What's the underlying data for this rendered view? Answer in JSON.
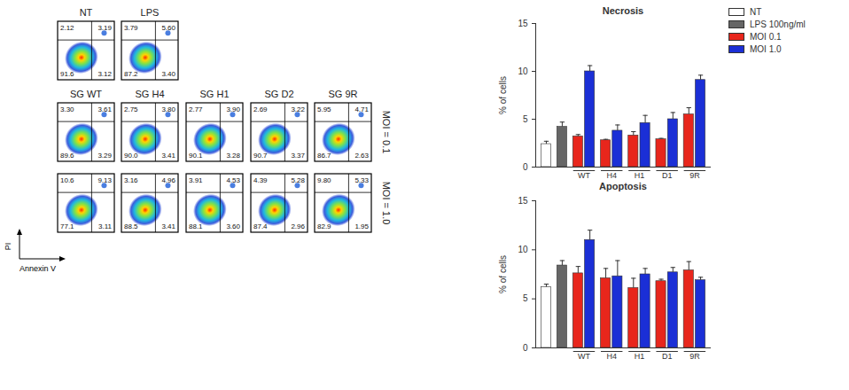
{
  "chart_data": [
    {
      "type": "flow_cytometry",
      "x_label": "Annexin V",
      "y_label": "PI",
      "panels": [
        {
          "title": "NT",
          "quadrants": {
            "values": [
              2.12,
              3.19,
              91.6,
              3.12
            ],
            "value_labels": [
              "2.12",
              "3.19",
              "91.6",
              "3.12"
            ]
          }
        },
        {
          "title": "LPS",
          "quadrants": {
            "values": [
              3.79,
              5.6,
              87.2,
              3.4
            ],
            "value_labels": [
              "3.79",
              "5.60",
              "87.2",
              "3.40"
            ]
          }
        }
      ],
      "rows": [
        {
          "label": "MOI = 0.1",
          "panels": [
            {
              "title": "SG WT",
              "quadrants": {
                "values": [
                  3.3,
                  3.61,
                  89.6,
                  3.29
                ],
                "value_labels": [
                  "3.30",
                  "3.61",
                  "89.6",
                  "3.29"
                ]
              }
            },
            {
              "title": "SG H4",
              "quadrants": {
                "values": [
                  2.75,
                  3.8,
                  90.0,
                  3.41
                ],
                "value_labels": [
                  "2.75",
                  "3.80",
                  "90.0",
                  "3.41"
                ]
              }
            },
            {
              "title": "SG H1",
              "quadrants": {
                "values": [
                  2.77,
                  3.9,
                  90.1,
                  3.28
                ],
                "value_labels": [
                  "2.77",
                  "3.90",
                  "90.1",
                  "3.28"
                ]
              }
            },
            {
              "title": "SG D2",
              "quadrants": {
                "values": [
                  2.69,
                  3.22,
                  90.7,
                  3.37
                ],
                "value_labels": [
                  "2.69",
                  "3.22",
                  "90.7",
                  "3.37"
                ]
              }
            },
            {
              "title": "SG 9R",
              "quadrants": {
                "values": [
                  5.95,
                  4.71,
                  86.7,
                  2.63
                ],
                "value_labels": [
                  "5.95",
                  "4.71",
                  "86.7",
                  "2.63"
                ]
              }
            }
          ]
        },
        {
          "label": "MOI = 1.0",
          "panels": [
            {
              "title": "SG WT",
              "quadrants": {
                "values": [
                  10.6,
                  9.13,
                  77.1,
                  3.11
                ],
                "value_labels": [
                  "10.6",
                  "9.13",
                  "77.1",
                  "3.11"
                ]
              }
            },
            {
              "title": "SG H4",
              "quadrants": {
                "values": [
                  3.16,
                  4.96,
                  88.5,
                  3.41
                ],
                "value_labels": [
                  "3.16",
                  "4.96",
                  "88.5",
                  "3.41"
                ]
              }
            },
            {
              "title": "SG H1",
              "quadrants": {
                "values": [
                  3.91,
                  4.53,
                  88.1,
                  3.6
                ],
                "value_labels": [
                  "3.91",
                  "4.53",
                  "88.1",
                  "3.60"
                ]
              }
            },
            {
              "title": "SG D2",
              "quadrants": {
                "values": [
                  4.39,
                  5.28,
                  87.4,
                  2.96
                ],
                "value_labels": [
                  "4.39",
                  "5.28",
                  "87.4",
                  "2.96"
                ]
              }
            },
            {
              "title": "SG 9R",
              "quadrants": {
                "values": [
                  9.8,
                  5.33,
                  82.9,
                  1.95
                ],
                "value_labels": [
                  "9.80",
                  "5.33",
                  "82.9",
                  "1.95"
                ]
              }
            }
          ]
        }
      ]
    },
    {
      "type": "bar",
      "title": "Necrosis",
      "y_label": "% of cells",
      "categories": [
        null,
        null,
        "WT",
        "H4",
        "H1",
        "D1",
        "9R"
      ],
      "series": [
        {
          "name": "NT",
          "color": "#ffffff",
          "values": [
            2.4,
            null,
            null,
            null,
            null,
            null,
            null
          ],
          "errors": [
            0.3,
            null,
            null,
            null,
            null,
            null,
            null
          ]
        },
        {
          "name": "LPS 100ng/ml",
          "color": "#666666",
          "values": [
            null,
            4.2,
            null,
            null,
            null,
            null,
            null
          ],
          "errors": [
            null,
            0.5,
            null,
            null,
            null,
            null,
            null
          ]
        },
        {
          "name": "MOI 0.1",
          "color": "#e8261c",
          "values": [
            null,
            null,
            3.2,
            2.8,
            3.3,
            2.9,
            5.5
          ],
          "errors": [
            null,
            null,
            0.2,
            0.1,
            0.4,
            0.1,
            0.7
          ]
        },
        {
          "name": "MOI 1.0",
          "color": "#1b2fd6",
          "values": [
            null,
            null,
            10.0,
            3.8,
            4.6,
            5.0,
            9.1
          ],
          "errors": [
            null,
            null,
            0.6,
            0.6,
            0.8,
            0.7,
            0.5
          ]
        }
      ],
      "ylim": [
        0,
        15
      ],
      "yticks": [
        0,
        5,
        10,
        15
      ],
      "legend": "top-right"
    },
    {
      "type": "bar",
      "title": "Apoptosis",
      "y_label": "% of cells",
      "categories": [
        null,
        null,
        "WT",
        "H4",
        "H1",
        "D1",
        "9R"
      ],
      "series": [
        {
          "name": "NT",
          "color": "#ffffff",
          "values": [
            6.2,
            null,
            null,
            null,
            null,
            null,
            null
          ],
          "errors": [
            0.3,
            null,
            null,
            null,
            null,
            null,
            null
          ]
        },
        {
          "name": "LPS 100ng/ml",
          "color": "#666666",
          "values": [
            null,
            8.4,
            null,
            null,
            null,
            null,
            null
          ],
          "errors": [
            null,
            0.5,
            null,
            null,
            null,
            null,
            null
          ]
        },
        {
          "name": "MOI 0.1",
          "color": "#e8261c",
          "values": [
            null,
            null,
            7.6,
            7.1,
            6.1,
            6.8,
            7.9
          ],
          "errors": [
            null,
            null,
            0.7,
            1.0,
            1.0,
            0.2,
            0.9
          ]
        },
        {
          "name": "MOI 1.0",
          "color": "#1b2fd6",
          "values": [
            null,
            null,
            11.0,
            7.3,
            7.5,
            7.7,
            6.9
          ],
          "errors": [
            null,
            null,
            1.0,
            1.6,
            0.6,
            0.5,
            0.3
          ]
        }
      ],
      "ylim": [
        0,
        15
      ],
      "yticks": [
        0,
        5,
        10,
        15
      ]
    }
  ]
}
